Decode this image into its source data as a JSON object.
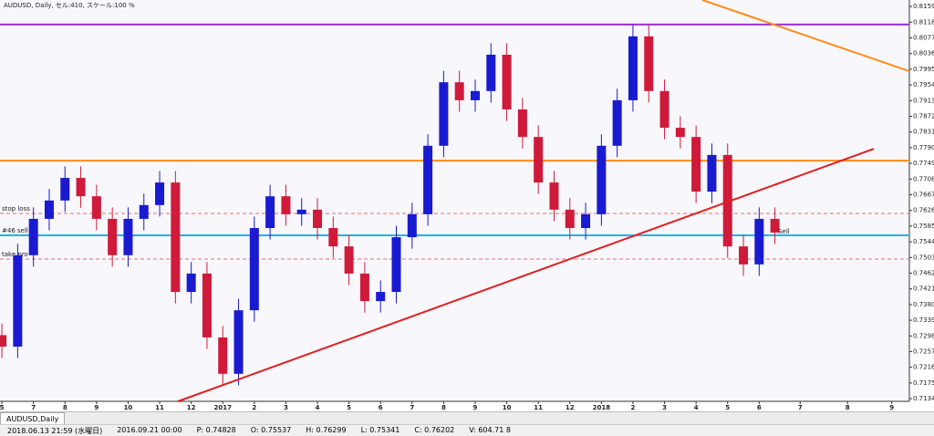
{
  "window": {
    "header": "AUDUSD, Daily, セル:410, スケール:100 %",
    "tab": "AUDUSD,Daily",
    "status": [
      "2018.06.13 21:59 (水曜日)",
      "2016.09.21 00:00",
      "P: 0.74828",
      "O: 0.75537",
      "H: 0.76299",
      "L: 0.75341",
      "C: 0.76202",
      "V: 604.71 8"
    ]
  },
  "chart_data": {
    "type": "candlestick",
    "up_color": "#1a1ad0",
    "down_color": "#d01a3a",
    "x": [
      0,
      0.5,
      1,
      1.5,
      2,
      2.5,
      3,
      3.5,
      4,
      4.5,
      5,
      5.5,
      6,
      6.5,
      7,
      7.5,
      8,
      8.5,
      9,
      9.5,
      10,
      10.5,
      11,
      11.5,
      12,
      12.5,
      13,
      13.5,
      14,
      14.5,
      15,
      15.5,
      16,
      16.5,
      17,
      17.5,
      18,
      18.5,
      19,
      19.5,
      20,
      20.5,
      21,
      21.5,
      22,
      22.5,
      23,
      23.5,
      24,
      24.5
    ],
    "open": [
      0.73,
      0.727,
      0.7509,
      0.7604,
      0.7652,
      0.7711,
      0.7663,
      0.7604,
      0.7509,
      0.7604,
      0.764,
      0.7699,
      0.7413,
      0.7461,
      0.7294,
      0.7199,
      0.7365,
      0.758,
      0.7663,
      0.7616,
      0.7628,
      0.758,
      0.7532,
      0.7461,
      0.7389,
      0.7413,
      0.7556,
      0.7616,
      0.7795,
      0.7961,
      0.7914,
      0.7938,
      0.8033,
      0.789,
      0.7818,
      0.7699,
      0.7628,
      0.758,
      0.7616,
      0.7795,
      0.7914,
      0.8081,
      0.7938,
      0.7842,
      0.7818,
      0.7675,
      0.7771,
      0.7532,
      0.7485,
      0.7604
    ],
    "high": [
      0.733,
      0.7539,
      0.7634,
      0.7682,
      0.7741,
      0.7741,
      0.7693,
      0.7634,
      0.7634,
      0.767,
      0.7729,
      0.7729,
      0.7491,
      0.7491,
      0.7324,
      0.7395,
      0.761,
      0.7693,
      0.7693,
      0.7658,
      0.7658,
      0.761,
      0.7562,
      0.7491,
      0.7443,
      0.7586,
      0.7646,
      0.7825,
      0.7991,
      0.7991,
      0.7968,
      0.8063,
      0.8063,
      0.792,
      0.7848,
      0.7729,
      0.7658,
      0.7646,
      0.7825,
      0.7944,
      0.8111,
      0.8111,
      0.7968,
      0.7872,
      0.7848,
      0.7801,
      0.7801,
      0.7562,
      0.7634,
      0.7634
    ],
    "low": [
      0.724,
      0.724,
      0.7479,
      0.7574,
      0.7622,
      0.7633,
      0.7574,
      0.7479,
      0.7479,
      0.7574,
      0.761,
      0.7383,
      0.7383,
      0.7264,
      0.7169,
      0.7169,
      0.7335,
      0.755,
      0.7586,
      0.7586,
      0.755,
      0.7502,
      0.7431,
      0.7359,
      0.7359,
      0.7383,
      0.7526,
      0.7586,
      0.7765,
      0.7884,
      0.7884,
      0.7908,
      0.786,
      0.7788,
      0.7669,
      0.7598,
      0.755,
      0.755,
      0.7586,
      0.7765,
      0.7884,
      0.7908,
      0.7812,
      0.7788,
      0.7645,
      0.7645,
      0.7502,
      0.7455,
      0.7455,
      0.7538
    ],
    "close": [
      0.727,
      0.7509,
      0.7604,
      0.7652,
      0.7711,
      0.7663,
      0.7604,
      0.7509,
      0.7604,
      0.764,
      0.7699,
      0.7413,
      0.7461,
      0.7294,
      0.7199,
      0.7365,
      0.758,
      0.7663,
      0.7616,
      0.7628,
      0.758,
      0.7532,
      0.7461,
      0.7389,
      0.7413,
      0.7556,
      0.7616,
      0.7795,
      0.7961,
      0.7914,
      0.7938,
      0.8033,
      0.789,
      0.7818,
      0.7699,
      0.7628,
      0.758,
      0.7616,
      0.7795,
      0.7914,
      0.8081,
      0.7938,
      0.7842,
      0.7818,
      0.7675,
      0.7771,
      0.7532,
      0.7485,
      0.7604,
      0.7568
    ],
    "xlim": [
      -0.06,
      28.76
    ],
    "ylim": [
      0.7127,
      0.8176
    ],
    "xticks": [
      {
        "value": 0,
        "label": "5"
      },
      {
        "value": 1,
        "label": "7"
      },
      {
        "value": 2,
        "label": "8"
      },
      {
        "value": 3,
        "label": "9"
      },
      {
        "value": 4,
        "label": "10"
      },
      {
        "value": 5,
        "label": "11"
      },
      {
        "value": 6,
        "label": "12"
      },
      {
        "value": 7,
        "label": "2017"
      },
      {
        "value": 8,
        "label": "2"
      },
      {
        "value": 9,
        "label": "3"
      },
      {
        "value": 10,
        "label": "4"
      },
      {
        "value": 11,
        "label": "5"
      },
      {
        "value": 12,
        "label": "6"
      },
      {
        "value": 13,
        "label": "7"
      },
      {
        "value": 14,
        "label": "8"
      },
      {
        "value": 15,
        "label": "9"
      },
      {
        "value": 16,
        "label": "10"
      },
      {
        "value": 17,
        "label": "11"
      },
      {
        "value": 18,
        "label": "12"
      },
      {
        "value": 19,
        "label": "2018"
      },
      {
        "value": 20,
        "label": "2"
      },
      {
        "value": 21,
        "label": "3"
      },
      {
        "value": 22,
        "label": "4"
      },
      {
        "value": 23,
        "label": "5"
      },
      {
        "value": 24,
        "label": "6"
      },
      {
        "value": 25.3,
        "label": "7"
      },
      {
        "value": 26.8,
        "label": "8"
      },
      {
        "value": 28.2,
        "label": "9"
      }
    ],
    "yticks": [
      {
        "value": 0.8159,
        "label": "0.81590"
      },
      {
        "value": 0.8118,
        "label": "0.81180"
      },
      {
        "value": 0.8077,
        "label": "0.80770"
      },
      {
        "value": 0.8036,
        "label": "0.80360"
      },
      {
        "value": 0.7995,
        "label": "0.79950"
      },
      {
        "value": 0.7954,
        "label": "0.79540"
      },
      {
        "value": 0.7913,
        "label": "0.79130"
      },
      {
        "value": 0.7872,
        "label": "0.78720"
      },
      {
        "value": 0.7831,
        "label": "0.78310"
      },
      {
        "value": 0.779,
        "label": "0.77900"
      },
      {
        "value": 0.7749,
        "label": "0.77490"
      },
      {
        "value": 0.7708,
        "label": "0.77080"
      },
      {
        "value": 0.7667,
        "label": "0.76670"
      },
      {
        "value": 0.7626,
        "label": "0.76260"
      },
      {
        "value": 0.7585,
        "label": "0.75850"
      },
      {
        "value": 0.7544,
        "label": "0.75440"
      },
      {
        "value": 0.7503,
        "label": "0.75030"
      },
      {
        "value": 0.7462,
        "label": "0.74620"
      },
      {
        "value": 0.7421,
        "label": "0.74210"
      },
      {
        "value": 0.738,
        "label": "0.73800"
      },
      {
        "value": 0.7339,
        "label": "0.73390"
      },
      {
        "value": 0.7298,
        "label": "0.72980"
      },
      {
        "value": 0.7257,
        "label": "0.72570"
      },
      {
        "value": 0.7216,
        "label": "0.72160"
      },
      {
        "value": 0.7175,
        "label": "0.71750"
      },
      {
        "value": 0.7134,
        "label": "0.71340"
      }
    ],
    "levels": [
      {
        "value": 0.8112,
        "color": "#9b30d9"
      },
      {
        "value": 0.7756,
        "color": "#ff8c1a"
      },
      {
        "value": 0.7561,
        "color": "#1fb4e6",
        "label": "#46 sell"
      },
      {
        "value": 0.7618,
        "color": "#e07070",
        "label": "stop loss",
        "dashed": true
      },
      {
        "value": 0.7499,
        "color": "#e07070",
        "label": "take pro",
        "dashed": true
      }
    ],
    "trendlines": [
      {
        "color": "#e02020",
        "points": [
          [
            5.58,
            0.7127
          ],
          [
            27.63,
            0.7787
          ]
        ]
      },
      {
        "color": "#ff8c1a",
        "points": [
          [
            22.2,
            0.8176
          ],
          [
            28.76,
            0.799
          ]
        ]
      }
    ],
    "annotation": {
      "text": "Sell",
      "x": 24.6,
      "y": 0.757
    }
  }
}
